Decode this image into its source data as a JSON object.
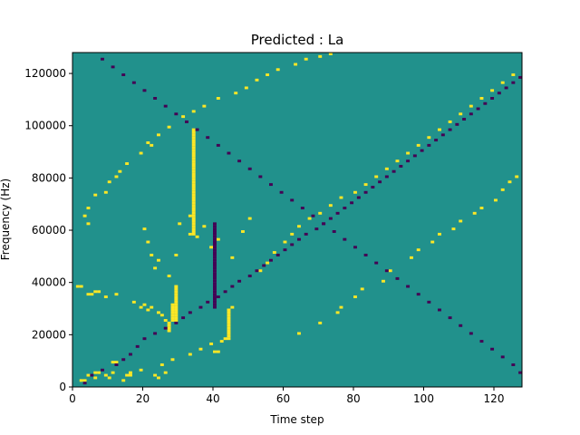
{
  "chart_data": {
    "type": "heatmap",
    "title": "Predicted : La",
    "xlabel": "Time step",
    "ylabel": "Frequency (Hz)",
    "xlim": [
      0,
      128
    ],
    "ylim": [
      0,
      128000
    ],
    "x_ticks": [
      0,
      20,
      40,
      60,
      80,
      100,
      120
    ],
    "y_ticks": [
      0,
      20000,
      40000,
      60000,
      80000,
      100000,
      120000
    ],
    "x_tick_labels": [
      "0",
      "20",
      "40",
      "60",
      "80",
      "100",
      "120"
    ],
    "y_tick_labels": [
      "0",
      "20000",
      "40000",
      "60000",
      "80000",
      "100000",
      "120000"
    ],
    "grid": false,
    "colormap": "viridis",
    "colors": {
      "background": "#21918c",
      "high": "#fde725",
      "low": "#440154"
    },
    "value_levels": {
      "background": 0,
      "high": 1,
      "low": -1
    },
    "rows": 128,
    "cols": 128,
    "cells_high": [
      [
        2,
        2
      ],
      [
        2,
        3
      ],
      [
        3,
        6
      ],
      [
        4,
        4
      ],
      [
        5,
        6
      ],
      [
        5,
        7
      ],
      [
        4,
        9
      ],
      [
        3,
        10
      ],
      [
        5,
        11
      ],
      [
        2,
        14
      ],
      [
        4,
        15
      ],
      [
        4,
        16
      ],
      [
        5,
        16
      ],
      [
        6,
        19
      ],
      [
        4,
        23
      ],
      [
        3,
        24
      ],
      [
        5,
        26
      ],
      [
        9,
        11
      ],
      [
        9,
        12
      ],
      [
        8,
        25
      ],
      [
        10,
        28
      ],
      [
        12,
        33
      ],
      [
        14,
        36
      ],
      [
        16,
        39
      ],
      [
        13,
        40
      ],
      [
        13,
        41
      ],
      [
        17,
        42
      ],
      [
        18,
        43
      ],
      [
        18,
        44
      ],
      [
        19,
        44
      ],
      [
        20,
        44
      ],
      [
        21,
        44
      ],
      [
        22,
        44
      ],
      [
        23,
        44
      ],
      [
        24,
        44
      ],
      [
        25,
        44
      ],
      [
        26,
        44
      ],
      [
        27,
        44
      ],
      [
        28,
        44
      ],
      [
        29,
        44
      ],
      [
        30,
        45
      ],
      [
        38,
        1
      ],
      [
        38,
        2
      ],
      [
        35,
        4
      ],
      [
        35,
        5
      ],
      [
        36,
        6
      ],
      [
        36,
        7
      ],
      [
        34,
        9
      ],
      [
        35,
        12
      ],
      [
        32,
        17
      ],
      [
        30,
        19
      ],
      [
        31,
        20
      ],
      [
        29,
        21
      ],
      [
        30,
        22
      ],
      [
        28,
        24
      ],
      [
        27,
        25
      ],
      [
        25,
        26
      ],
      [
        21,
        27
      ],
      [
        22,
        27
      ],
      [
        23,
        27
      ],
      [
        24,
        27
      ],
      [
        25,
        28
      ],
      [
        26,
        28
      ],
      [
        27,
        28
      ],
      [
        28,
        28
      ],
      [
        29,
        28
      ],
      [
        30,
        28
      ],
      [
        31,
        28
      ],
      [
        25,
        29
      ],
      [
        26,
        29
      ],
      [
        27,
        29
      ],
      [
        28,
        29
      ],
      [
        29,
        29
      ],
      [
        30,
        29
      ],
      [
        31,
        29
      ],
      [
        32,
        29
      ],
      [
        33,
        29
      ],
      [
        34,
        29
      ],
      [
        35,
        29
      ],
      [
        36,
        29
      ],
      [
        37,
        29
      ],
      [
        38,
        29
      ],
      [
        62,
        4
      ],
      [
        65,
        3
      ],
      [
        68,
        4
      ],
      [
        73,
        6
      ],
      [
        74,
        9
      ],
      [
        78,
        10
      ],
      [
        80,
        12
      ],
      [
        82,
        13
      ],
      [
        85,
        15
      ],
      [
        89,
        19
      ],
      [
        92,
        22
      ],
      [
        93,
        21
      ],
      [
        96,
        24
      ],
      [
        99,
        27
      ],
      [
        103,
        31
      ],
      [
        105,
        34
      ],
      [
        107,
        37
      ],
      [
        110,
        41
      ],
      [
        112,
        46
      ],
      [
        114,
        49
      ],
      [
        117,
        52
      ],
      [
        119,
        55
      ],
      [
        121,
        58
      ],
      [
        123,
        63
      ],
      [
        125,
        66
      ],
      [
        126,
        70
      ],
      [
        127,
        73
      ],
      [
        60,
        20
      ],
      [
        55,
        21
      ],
      [
        50,
        22
      ],
      [
        45,
        23
      ],
      [
        48,
        24
      ],
      [
        42,
        27
      ],
      [
        50,
        29
      ],
      [
        62,
        30
      ],
      [
        65,
        33
      ],
      [
        57,
        35
      ],
      [
        61,
        37
      ],
      [
        53,
        39
      ],
      [
        56,
        41
      ],
      [
        49,
        45
      ],
      [
        59,
        48
      ],
      [
        64,
        50
      ],
      [
        44,
        53
      ],
      [
        47,
        55
      ],
      [
        51,
        57
      ],
      [
        55,
        60
      ],
      [
        58,
        62
      ],
      [
        61,
        64
      ],
      [
        64,
        67
      ],
      [
        66,
        70
      ],
      [
        69,
        73
      ],
      [
        72,
        76
      ],
      [
        74,
        80
      ],
      [
        77,
        83
      ],
      [
        80,
        86
      ],
      [
        83,
        89
      ],
      [
        86,
        92
      ],
      [
        89,
        95
      ],
      [
        92,
        98
      ],
      [
        95,
        101
      ],
      [
        98,
        104
      ],
      [
        101,
        107
      ],
      [
        104,
        110
      ],
      [
        107,
        113
      ],
      [
        110,
        116
      ],
      [
        113,
        119
      ],
      [
        116,
        122
      ],
      [
        119,
        125
      ],
      [
        58,
        33
      ],
      [
        58,
        34
      ],
      [
        59,
        34
      ],
      [
        60,
        34
      ],
      [
        61,
        34
      ],
      [
        62,
        34
      ],
      [
        63,
        34
      ],
      [
        64,
        34
      ],
      [
        65,
        34
      ],
      [
        66,
        34
      ],
      [
        67,
        34
      ],
      [
        68,
        34
      ],
      [
        69,
        34
      ],
      [
        70,
        34
      ],
      [
        71,
        34
      ],
      [
        72,
        34
      ],
      [
        73,
        34
      ],
      [
        74,
        34
      ],
      [
        75,
        34
      ],
      [
        76,
        34
      ],
      [
        77,
        34
      ],
      [
        78,
        34
      ],
      [
        79,
        34
      ],
      [
        80,
        34
      ],
      [
        81,
        34
      ],
      [
        82,
        34
      ],
      [
        83,
        34
      ],
      [
        84,
        34
      ],
      [
        85,
        34
      ],
      [
        86,
        34
      ],
      [
        87,
        34
      ],
      [
        88,
        34
      ],
      [
        89,
        34
      ],
      [
        90,
        34
      ],
      [
        91,
        34
      ],
      [
        92,
        34
      ],
      [
        93,
        34
      ],
      [
        94,
        34
      ],
      [
        95,
        34
      ],
      [
        96,
        34
      ],
      [
        97,
        34
      ],
      [
        98,
        34
      ],
      [
        20,
        64
      ],
      [
        24,
        70
      ],
      [
        28,
        75
      ],
      [
        30,
        76
      ],
      [
        34,
        80
      ],
      [
        37,
        82
      ],
      [
        40,
        88
      ],
      [
        44,
        90
      ],
      [
        49,
        96
      ],
      [
        52,
        98
      ],
      [
        55,
        102
      ],
      [
        58,
        104
      ],
      [
        60,
        108
      ],
      [
        63,
        110
      ],
      [
        66,
        114
      ],
      [
        68,
        116
      ],
      [
        71,
        120
      ],
      [
        75,
        122
      ],
      [
        78,
        124
      ],
      [
        80,
        126
      ]
    ],
    "cells_low": [
      [
        1,
        3
      ],
      [
        4,
        5
      ],
      [
        6,
        8
      ],
      [
        8,
        12
      ],
      [
        10,
        14
      ],
      [
        12,
        16
      ],
      [
        15,
        18
      ],
      [
        18,
        20
      ],
      [
        20,
        23
      ],
      [
        22,
        26
      ],
      [
        24,
        29
      ],
      [
        26,
        31
      ],
      [
        28,
        33
      ],
      [
        30,
        36
      ],
      [
        32,
        38
      ],
      [
        34,
        41
      ],
      [
        36,
        43
      ],
      [
        38,
        45
      ],
      [
        40,
        47
      ],
      [
        42,
        50
      ],
      [
        44,
        52
      ],
      [
        46,
        54
      ],
      [
        48,
        56
      ],
      [
        50,
        58
      ],
      [
        52,
        60
      ],
      [
        54,
        62
      ],
      [
        56,
        64
      ],
      [
        58,
        66
      ],
      [
        60,
        69
      ],
      [
        62,
        71
      ],
      [
        64,
        73
      ],
      [
        66,
        75
      ],
      [
        68,
        77
      ],
      [
        70,
        79
      ],
      [
        72,
        81
      ],
      [
        74,
        83
      ],
      [
        76,
        85
      ],
      [
        78,
        87
      ],
      [
        80,
        89
      ],
      [
        82,
        91
      ],
      [
        84,
        93
      ],
      [
        86,
        95
      ],
      [
        88,
        97
      ],
      [
        90,
        99
      ],
      [
        92,
        101
      ],
      [
        94,
        103
      ],
      [
        96,
        105
      ],
      [
        98,
        107
      ],
      [
        100,
        109
      ],
      [
        102,
        111
      ],
      [
        104,
        113
      ],
      [
        106,
        115
      ],
      [
        108,
        117
      ],
      [
        110,
        119
      ],
      [
        112,
        121
      ],
      [
        114,
        123
      ],
      [
        116,
        125
      ],
      [
        118,
        127
      ],
      [
        30,
        40
      ],
      [
        31,
        40
      ],
      [
        32,
        40
      ],
      [
        33,
        40
      ],
      [
        34,
        40
      ],
      [
        35,
        40
      ],
      [
        36,
        40
      ],
      [
        37,
        40
      ],
      [
        38,
        40
      ],
      [
        39,
        40
      ],
      [
        40,
        40
      ],
      [
        41,
        40
      ],
      [
        42,
        40
      ],
      [
        43,
        40
      ],
      [
        44,
        40
      ],
      [
        45,
        40
      ],
      [
        46,
        40
      ],
      [
        47,
        40
      ],
      [
        48,
        40
      ],
      [
        49,
        40
      ],
      [
        50,
        40
      ],
      [
        51,
        40
      ],
      [
        52,
        40
      ],
      [
        53,
        40
      ],
      [
        54,
        40
      ],
      [
        55,
        40
      ],
      [
        56,
        40
      ],
      [
        57,
        40
      ],
      [
        58,
        40
      ],
      [
        59,
        40
      ],
      [
        60,
        40
      ],
      [
        61,
        40
      ],
      [
        62,
        40
      ],
      [
        125,
        8
      ],
      [
        122,
        11
      ],
      [
        119,
        14
      ],
      [
        116,
        17
      ],
      [
        113,
        20
      ],
      [
        110,
        23
      ],
      [
        107,
        26
      ],
      [
        104,
        29
      ],
      [
        101,
        32
      ],
      [
        98,
        35
      ],
      [
        95,
        38
      ],
      [
        92,
        41
      ],
      [
        89,
        44
      ],
      [
        86,
        47
      ],
      [
        83,
        50
      ],
      [
        80,
        53
      ],
      [
        77,
        56
      ],
      [
        74,
        59
      ],
      [
        71,
        62
      ],
      [
        68,
        65
      ],
      [
        65,
        68
      ],
      [
        62,
        71
      ],
      [
        59,
        74
      ],
      [
        56,
        77
      ],
      [
        53,
        80
      ],
      [
        50,
        83
      ],
      [
        47,
        86
      ],
      [
        44,
        89
      ],
      [
        41,
        92
      ],
      [
        38,
        95
      ],
      [
        35,
        98
      ],
      [
        32,
        101
      ],
      [
        29,
        104
      ],
      [
        26,
        107
      ],
      [
        23,
        110
      ],
      [
        20,
        113
      ],
      [
        17,
        116
      ],
      [
        14,
        119
      ],
      [
        11,
        122
      ],
      [
        8,
        125
      ],
      [
        5,
        127
      ]
    ]
  }
}
